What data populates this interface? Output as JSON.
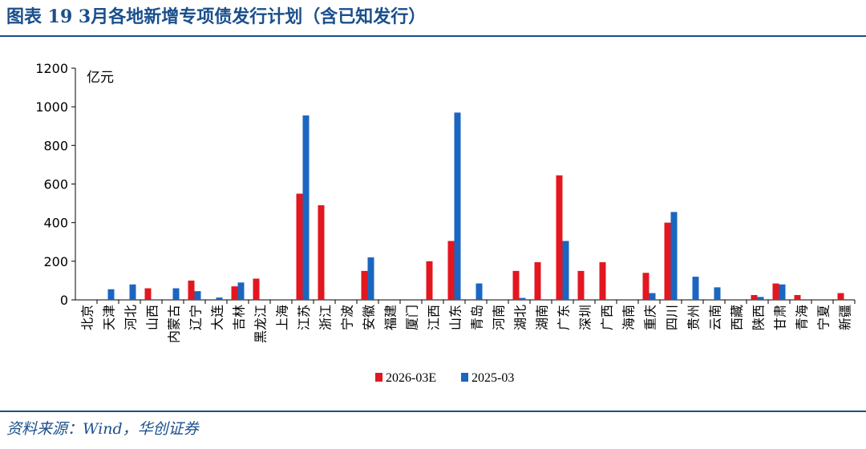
{
  "figure": {
    "title": "图表 19   3月各地新增专项债发行计划（含已知发行）",
    "source": "资料来源：Wind，华创证券"
  },
  "colors": {
    "series_2026": "#e3171f",
    "series_2025": "#1b66c0",
    "title_blue": "#1a4f8c",
    "axis": "#000000"
  },
  "chart_data": {
    "type": "bar",
    "unit_label": "亿元",
    "ylim": [
      0,
      1200
    ],
    "yticks": [
      "0",
      "200",
      "400",
      "600",
      "800",
      "1000",
      "1200"
    ],
    "grid": false,
    "legend_position": "bottom-center",
    "categories": [
      "北京",
      "天津",
      "河北",
      "山西",
      "内蒙古",
      "辽宁",
      "大连",
      "吉林",
      "黑龙江",
      "上海",
      "江苏",
      "浙江",
      "宁波",
      "安徽",
      "福建",
      "厦门",
      "江西",
      "山东",
      "青岛",
      "河南",
      "湖北",
      "湖南",
      "广东",
      "深圳",
      "广西",
      "海南",
      "重庆",
      "四川",
      "贵州",
      "云南",
      "西藏",
      "陕西",
      "甘肃",
      "青海",
      "宁夏",
      "新疆"
    ],
    "series": [
      {
        "name": "2026-03E",
        "values": [
          0,
          0,
          0,
          60,
          0,
          100,
          0,
          70,
          110,
          0,
          550,
          490,
          0,
          150,
          0,
          0,
          200,
          305,
          0,
          0,
          150,
          195,
          645,
          150,
          195,
          0,
          140,
          400,
          0,
          0,
          0,
          25,
          85,
          25,
          0,
          35
        ]
      },
      {
        "name": "2025-03",
        "values": [
          0,
          55,
          80,
          0,
          60,
          45,
          12,
          90,
          0,
          0,
          955,
          0,
          0,
          220,
          0,
          0,
          0,
          970,
          85,
          0,
          10,
          0,
          305,
          0,
          0,
          0,
          35,
          455,
          120,
          65,
          0,
          15,
          80,
          0,
          0,
          0
        ]
      }
    ]
  }
}
